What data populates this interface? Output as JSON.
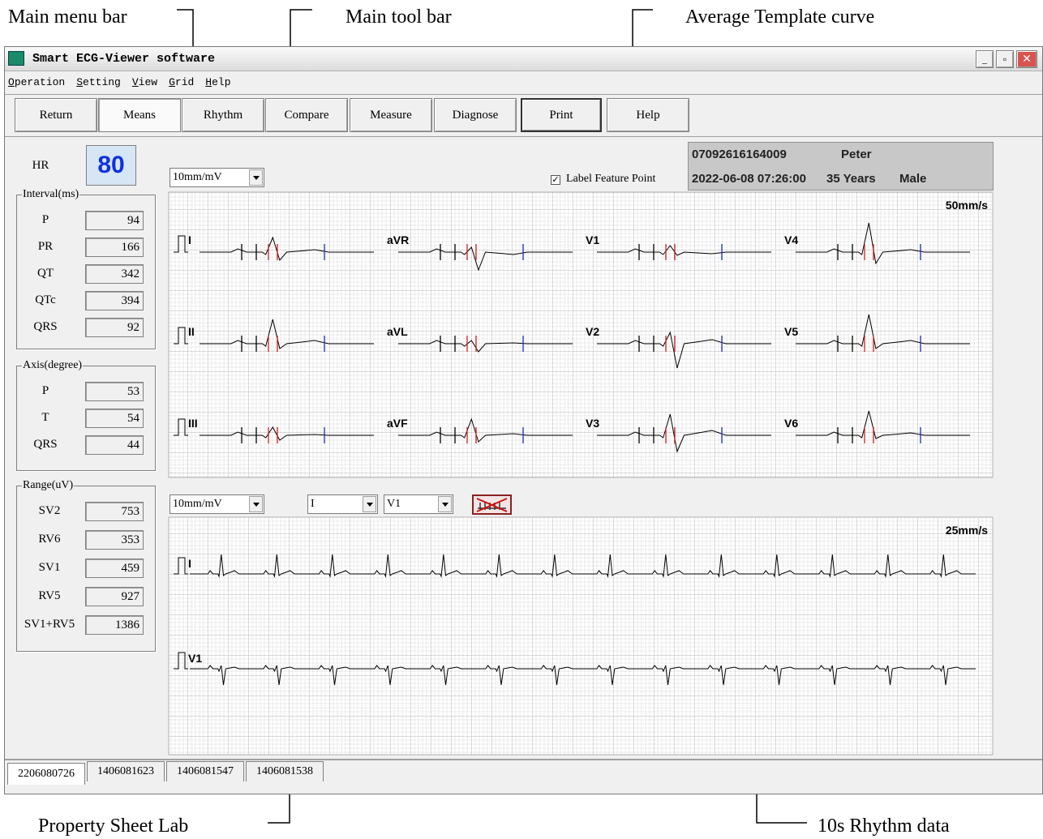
{
  "annotations": [
    "Main menu bar",
    "Main tool bar",
    "Average Template curve",
    "Property Sheet Lab",
    "10s Rhythm data"
  ],
  "window": {
    "title": "Smart ECG-Viewer software"
  },
  "menu": [
    "Operation",
    "Setting",
    "View",
    "Grid",
    "Help"
  ],
  "toolbar": [
    "Return",
    "Means",
    "Rhythm",
    "Compare",
    "Measure",
    "Diagnose",
    "Print",
    "Help"
  ],
  "hr": {
    "label": "HR",
    "value": 80
  },
  "interval": {
    "title": "Interval(ms)",
    "rows": [
      {
        "label": "P",
        "value": 94
      },
      {
        "label": "PR",
        "value": 166
      },
      {
        "label": "QT",
        "value": 342
      },
      {
        "label": "QTc",
        "value": 394
      },
      {
        "label": "QRS",
        "value": 92
      }
    ]
  },
  "axis": {
    "title": "Axis(degree)",
    "rows": [
      {
        "label": "P",
        "value": 53
      },
      {
        "label": "T",
        "value": 54
      },
      {
        "label": "QRS",
        "value": 44
      }
    ]
  },
  "range": {
    "title": "Range(uV)",
    "rows": [
      {
        "label": "SV2",
        "value": 753
      },
      {
        "label": "RV6",
        "value": 353
      },
      {
        "label": "SV1",
        "value": 459
      },
      {
        "label": "RV5",
        "value": 927
      },
      {
        "label": "SV1+RV5",
        "value": 1386
      }
    ]
  },
  "template": {
    "gain": "10mm/mV",
    "checkbox": "Label Feature Point",
    "speed": "50mm/s",
    "leads": [
      "I",
      "aVR",
      "V1",
      "V4",
      "II",
      "aVL",
      "V2",
      "V5",
      "III",
      "aVF",
      "V3",
      "V6"
    ]
  },
  "patient": {
    "id": "07092616164009",
    "name": "Peter",
    "datetime": "2022-06-08 07:26:00",
    "age": "35 Years",
    "sex": "Male"
  },
  "rhythm": {
    "gain": "10mm/mV",
    "lead_select": [
      "I",
      "V1"
    ],
    "speed": "25mm/s",
    "leads": [
      "I",
      "V1"
    ]
  },
  "tabs": [
    "2206080726",
    "1406081623",
    "1406081547",
    "1406081538"
  ]
}
